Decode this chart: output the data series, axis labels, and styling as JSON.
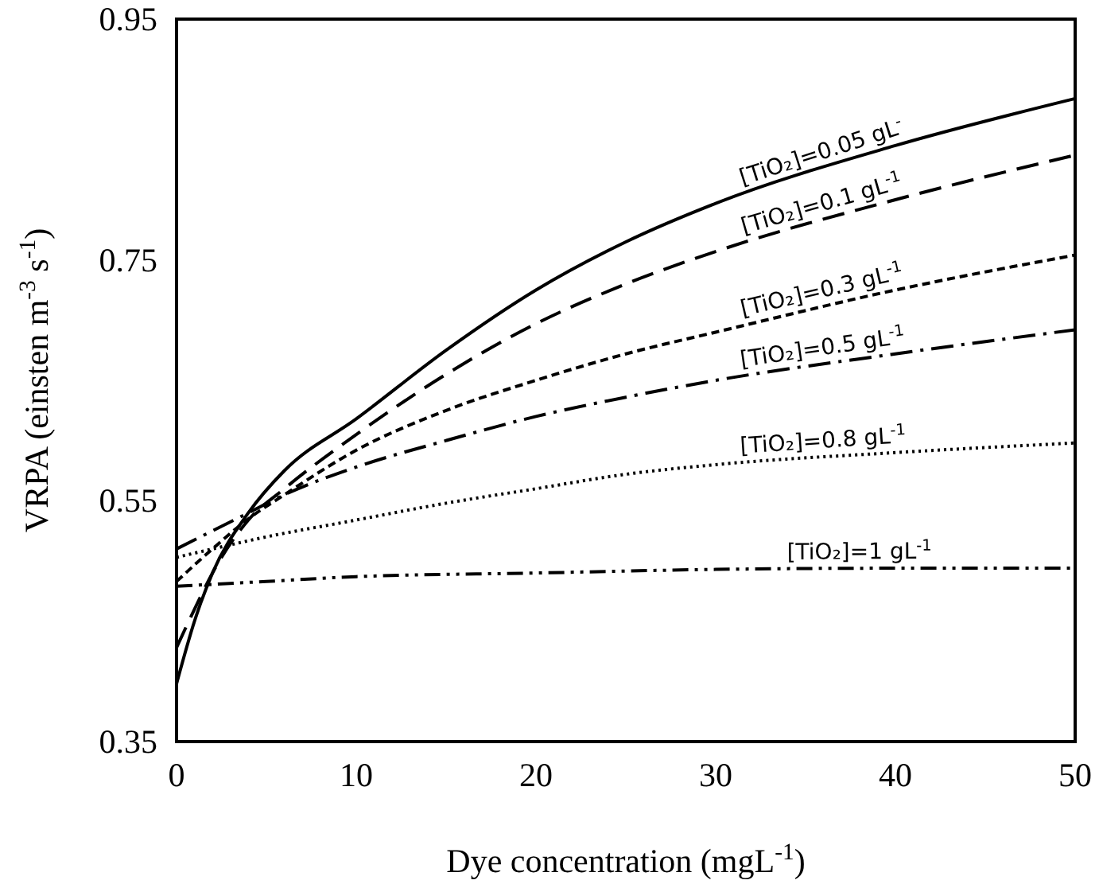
{
  "chart_data": {
    "type": "line",
    "xlabel": "Dye concentration (mgL$^{-1}$)",
    "ylabel": "VRPA (einsten m$^{-3}$ s$^{-1}$)",
    "xlim": [
      0,
      50
    ],
    "xticks": [
      0,
      10,
      20,
      30,
      40,
      50
    ],
    "ylim": [
      0.35,
      0.95
    ],
    "yticks": [
      0.35,
      0.55,
      0.75,
      0.95
    ],
    "grid": false,
    "series": [
      {
        "name": "[TiO₂]=0.05 gL$^{-}$",
        "color": "#000000",
        "line_style": "solid",
        "x": [
          0,
          1,
          2,
          4,
          6,
          10,
          15,
          20,
          25,
          30,
          40,
          50
        ],
        "values": [
          0.398,
          0.45,
          0.49,
          0.54,
          0.575,
          0.618,
          0.675,
          0.725,
          0.765,
          0.797,
          0.845,
          0.884
        ]
      },
      {
        "name": "[TiO₂]=0.1 gL$^{-1}$",
        "color": "#000000",
        "line_style": "dashed",
        "x": [
          0,
          1,
          2,
          4,
          6,
          10,
          15,
          20,
          25,
          30,
          40,
          50
        ],
        "values": [
          0.428,
          0.46,
          0.49,
          0.534,
          0.56,
          0.605,
          0.655,
          0.697,
          0.73,
          0.757,
          0.8,
          0.837
        ]
      },
      {
        "name": "[TiO₂]=0.3 gL$^{-1}$",
        "color": "#000000",
        "line_style": "shortdash",
        "x": [
          0,
          2,
          4,
          6,
          10,
          15,
          20,
          25,
          30,
          40,
          50
        ],
        "values": [
          0.483,
          0.51,
          0.535,
          0.555,
          0.592,
          0.625,
          0.65,
          0.672,
          0.69,
          0.725,
          0.754
        ]
      },
      {
        "name": "[TiO₂]=0.5 gL$^{-1}$",
        "color": "#000000",
        "line_style": "dashdot",
        "x": [
          0,
          2,
          4,
          6,
          10,
          15,
          20,
          25,
          30,
          40,
          50
        ],
        "values": [
          0.51,
          0.525,
          0.54,
          0.555,
          0.578,
          0.6,
          0.62,
          0.636,
          0.65,
          0.672,
          0.692
        ]
      },
      {
        "name": "[TiO₂]=0.8 gL$^{-1}$",
        "color": "#000000",
        "line_style": "dotted",
        "x": [
          0,
          2,
          5,
          10,
          15,
          20,
          25,
          30,
          40,
          50
        ],
        "values": [
          0.503,
          0.51,
          0.52,
          0.534,
          0.548,
          0.56,
          0.572,
          0.58,
          0.59,
          0.598
        ]
      },
      {
        "name": "[TiO₂]=1 gL$^{-1}$",
        "color": "#000000",
        "line_style": "dashdotdot",
        "x": [
          0,
          5,
          10,
          20,
          30,
          40,
          50
        ],
        "values": [
          0.479,
          0.483,
          0.487,
          0.49,
          0.493,
          0.494,
          0.494
        ]
      }
    ]
  }
}
